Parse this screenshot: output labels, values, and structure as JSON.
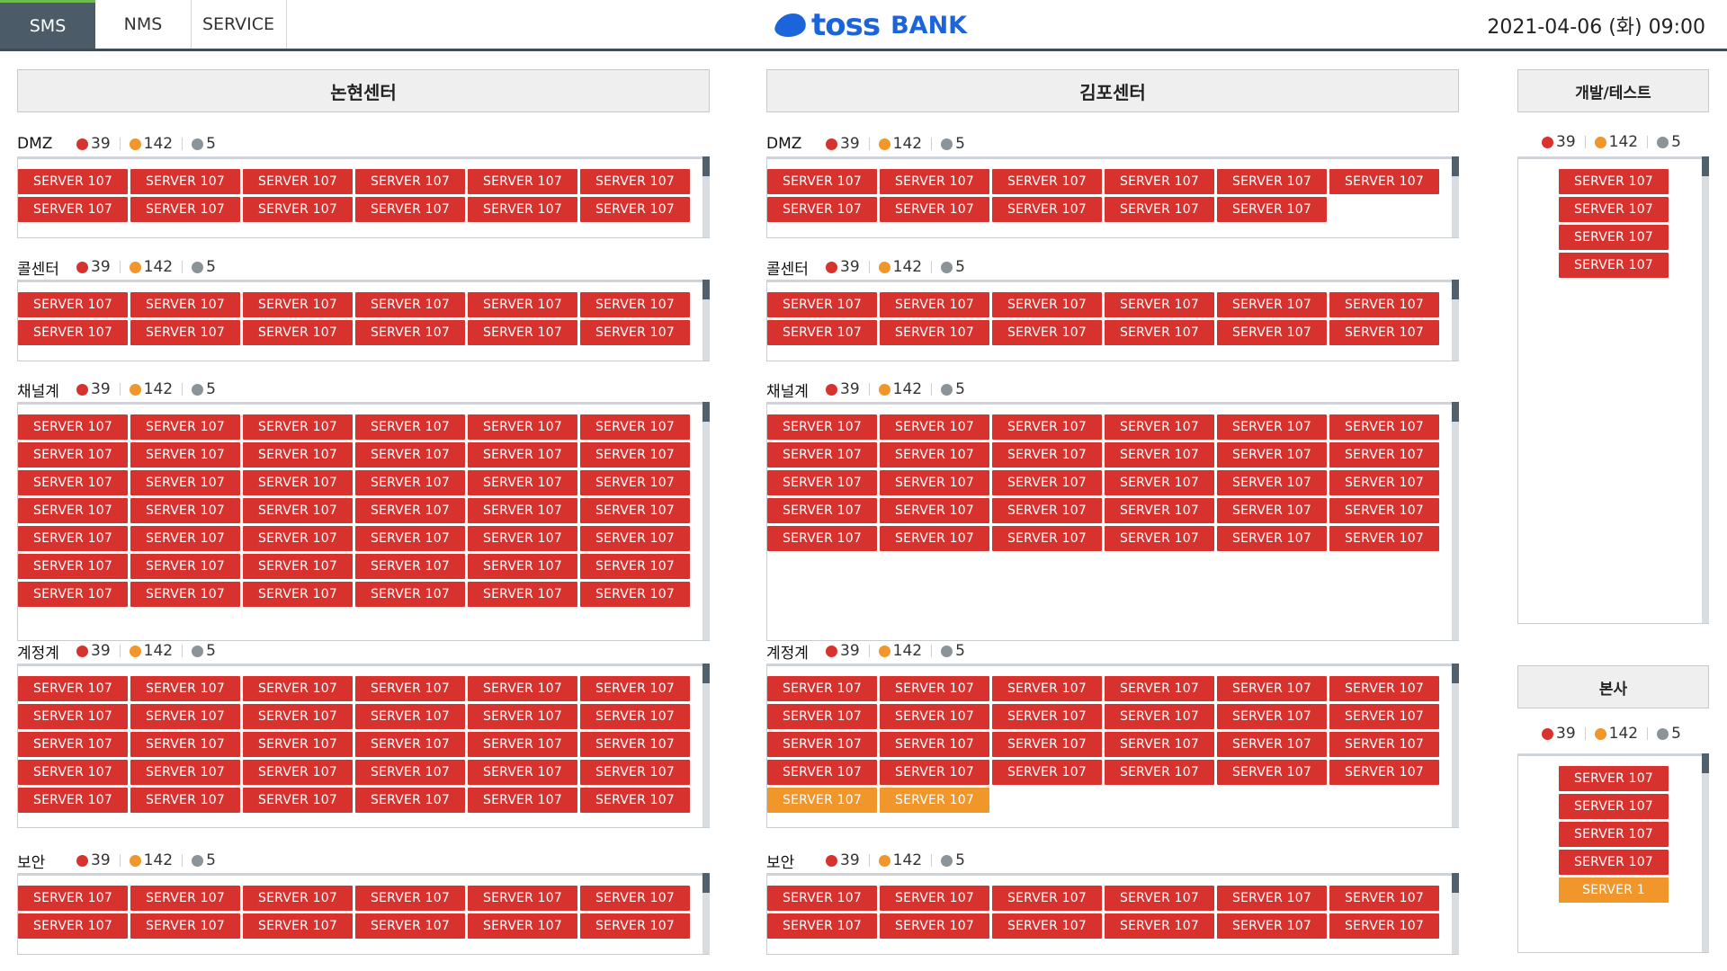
{
  "header": {
    "tabs": [
      {
        "label": "SMS",
        "active": true
      },
      {
        "label": "NMS",
        "active": false
      },
      {
        "label": "SERVICE",
        "active": false
      }
    ],
    "brand": {
      "toss": "toss",
      "bank": "BANK",
      "color": "#1b64da"
    },
    "datetime": "2021-04-06 (화) 09:00"
  },
  "colors": {
    "critical": "#d8322f",
    "warning": "#f0962b",
    "inactive": "#8b9499",
    "header_bar": "#3f4d5a"
  },
  "legend_counts": {
    "red": "39",
    "orange": "142",
    "gray": "5"
  },
  "centers": [
    {
      "title": "논현센터",
      "groups": [
        {
          "name": "DMZ",
          "servers": [
            "SERVER 107",
            "SERVER 107",
            "SERVER 107",
            "SERVER 107",
            "SERVER 107",
            "SERVER 107",
            "SERVER 107",
            "SERVER 107",
            "SERVER 107",
            "SERVER 107",
            "SERVER 107",
            "SERVER 107"
          ],
          "warn_count": 0
        },
        {
          "name": "콜센터",
          "servers": [
            "SERVER 107",
            "SERVER 107",
            "SERVER 107",
            "SERVER 107",
            "SERVER 107",
            "SERVER 107",
            "SERVER 107",
            "SERVER 107",
            "SERVER 107",
            "SERVER 107",
            "SERVER 107",
            "SERVER 107"
          ],
          "warn_count": 0
        },
        {
          "name": "채널계",
          "count": 42,
          "label": "SERVER 107",
          "warn_count": 0
        },
        {
          "name": "계정계",
          "count": 30,
          "label": "SERVER 107",
          "warn_count": 0
        },
        {
          "name": "보안",
          "count": 12,
          "label": "SERVER 107",
          "warn_count": 0
        }
      ]
    },
    {
      "title": "김포센터",
      "groups": [
        {
          "name": "DMZ",
          "count": 11,
          "label": "SERVER 107",
          "warn_count": 0
        },
        {
          "name": "콜센터",
          "count": 12,
          "label": "SERVER 107",
          "warn_count": 0
        },
        {
          "name": "채널계",
          "count": 30,
          "label": "SERVER 107",
          "warn_count": 0
        },
        {
          "name": "계정계",
          "count": 26,
          "label": "SERVER 107",
          "warn_count": 2
        },
        {
          "name": "보안",
          "count": 12,
          "label": "SERVER 107",
          "warn_count": 0
        }
      ]
    }
  ],
  "side_panels": [
    {
      "title": "개발/테스트",
      "servers": [
        {
          "label": "SERVER 107",
          "status": "critical"
        },
        {
          "label": "SERVER 107",
          "status": "critical"
        },
        {
          "label": "SERVER 107",
          "status": "critical"
        },
        {
          "label": "SERVER 107",
          "status": "critical"
        }
      ]
    },
    {
      "title": "본사",
      "servers": [
        {
          "label": "SERVER 107",
          "status": "critical"
        },
        {
          "label": "SERVER 107",
          "status": "critical"
        },
        {
          "label": "SERVER 107",
          "status": "critical"
        },
        {
          "label": "SERVER 107",
          "status": "critical"
        },
        {
          "label": "SERVER 1",
          "status": "warning"
        }
      ]
    }
  ]
}
